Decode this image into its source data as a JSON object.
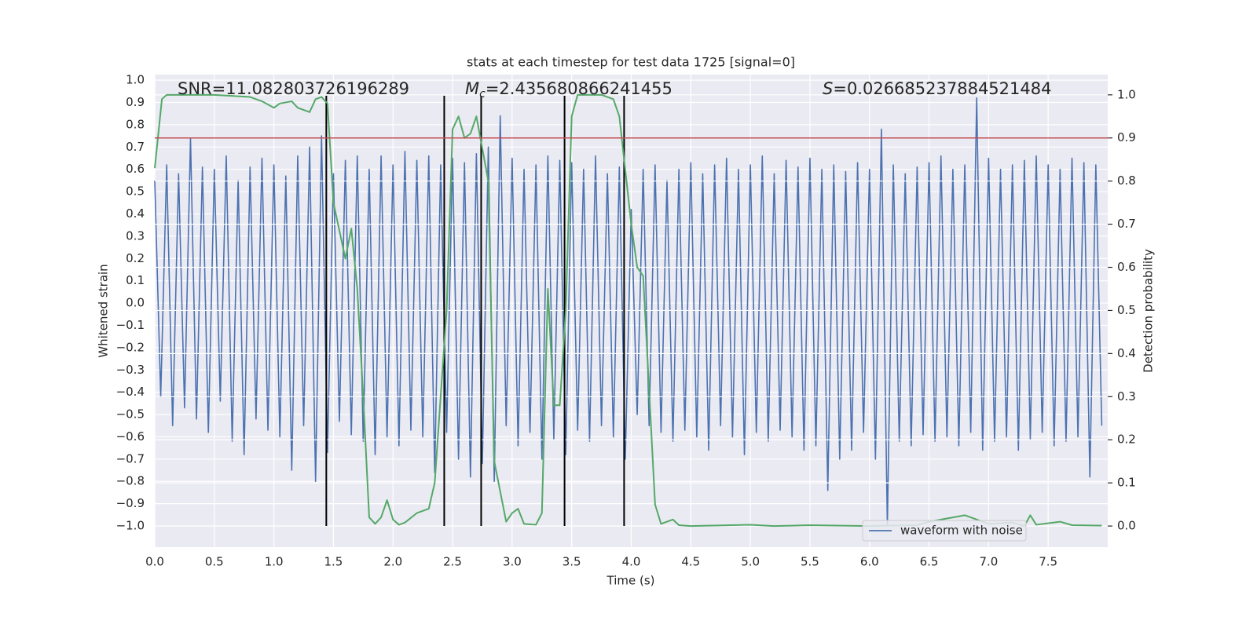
{
  "chart_data": {
    "type": "line",
    "title": "stats at each timestep for test data 1725 [signal=0]",
    "xlabel": "Time (s)",
    "ylabel": "Whitened strain",
    "y2label": "Detection probability",
    "background": "#eaeaf2",
    "grid": true,
    "legend": "lower right",
    "xlim": [
      0,
      8
    ],
    "xticks": [
      {
        "value": 0,
        "label": "0.0"
      },
      0.5,
      {
        "value": 1,
        "label": "1.0"
      },
      1.5,
      {
        "value": 2,
        "label": "2.0"
      },
      2.5,
      {
        "value": 3,
        "label": "3.0"
      },
      3.5,
      {
        "value": 4,
        "label": "4.0"
      },
      4.5,
      {
        "value": 5,
        "label": "5.0"
      },
      5.5,
      {
        "value": 6,
        "label": "6.0"
      },
      6.5,
      {
        "value": 7,
        "label": "7.0"
      },
      7.5
    ],
    "ylim": [
      -1.095,
      1.025
    ],
    "yticks": [
      {
        "value": -1,
        "label": "−1.0"
      },
      {
        "value": -0.9,
        "label": "−0.9"
      },
      {
        "value": -0.8,
        "label": "−0.8"
      },
      {
        "value": -0.7,
        "label": "−0.7"
      },
      {
        "value": -0.6,
        "label": "−0.6"
      },
      {
        "value": -0.5,
        "label": "−0.5"
      },
      {
        "value": -0.4,
        "label": "−0.4"
      },
      {
        "value": -0.3,
        "label": "−0.3"
      },
      {
        "value": -0.2,
        "label": "−0.2"
      },
      {
        "value": -0.1,
        "label": "−0.1"
      },
      {
        "value": 0,
        "label": "0.0"
      },
      0.1,
      0.2,
      0.3,
      0.4,
      0.5,
      0.6,
      0.7,
      0.8,
      0.9,
      {
        "value": 1,
        "label": "1.0"
      }
    ],
    "y2lim": [
      -0.049,
      1.047
    ],
    "y2ticks": [
      {
        "value": 0,
        "label": "0.0"
      },
      0.1,
      0.2,
      0.3,
      0.4,
      0.5,
      0.6,
      0.7,
      0.8,
      0.9,
      {
        "value": 1,
        "label": "1.0"
      }
    ],
    "x": [
      0,
      0.05,
      0.1,
      0.15,
      0.2,
      0.25,
      0.3,
      0.35,
      0.4,
      0.45,
      0.5,
      0.55,
      0.6,
      0.65,
      0.7,
      0.75,
      0.8,
      0.85,
      0.9,
      0.95,
      1.0,
      1.05,
      1.1,
      1.15,
      1.2,
      1.25,
      1.3,
      1.35,
      1.4,
      1.45,
      1.5,
      1.55,
      1.6,
      1.65,
      1.7,
      1.75,
      1.8,
      1.85,
      1.9,
      1.95,
      2.0,
      2.05,
      2.1,
      2.15,
      2.2,
      2.25,
      2.3,
      2.35,
      2.4,
      2.45,
      2.5,
      2.55,
      2.6,
      2.65,
      2.7,
      2.75,
      2.8,
      2.85,
      2.9,
      2.95,
      3.0,
      3.05,
      3.1,
      3.15,
      3.2,
      3.25,
      3.3,
      3.35,
      3.4,
      3.45,
      3.5,
      3.55,
      3.6,
      3.65,
      3.7,
      3.75,
      3.8,
      3.85,
      3.9,
      3.95,
      4.0,
      4.05,
      4.1,
      4.15,
      4.2,
      4.25,
      4.3,
      4.35,
      4.4,
      4.45,
      4.5,
      4.55,
      4.6,
      4.65,
      4.7,
      4.75,
      4.8,
      4.85,
      4.9,
      4.95,
      5.0,
      5.05,
      5.1,
      5.15,
      5.2,
      5.25,
      5.3,
      5.35,
      5.4,
      5.45,
      5.5,
      5.55,
      5.6,
      5.65,
      5.7,
      5.75,
      5.8,
      5.85,
      5.9,
      5.95,
      6.0,
      6.05,
      6.1,
      6.15,
      6.2,
      6.25,
      6.3,
      6.35,
      6.4,
      6.45,
      6.5,
      6.55,
      6.6,
      6.65,
      6.7,
      6.75,
      6.8,
      6.85,
      6.9,
      6.95,
      7.0,
      7.05,
      7.1,
      7.15,
      7.2,
      7.25,
      7.3,
      7.35,
      7.4,
      7.45,
      7.5,
      7.55,
      7.6,
      7.65,
      7.7,
      7.75,
      7.8,
      7.85,
      7.9,
      7.95
    ],
    "series": [
      {
        "name": "waveform with noise",
        "color": "#4c72b0",
        "values": [
          0.55,
          -0.42,
          0.62,
          -0.55,
          0.58,
          -0.47,
          0.74,
          -0.52,
          0.61,
          -0.58,
          0.6,
          -0.44,
          0.66,
          -0.62,
          0.55,
          -0.68,
          0.61,
          -0.52,
          0.65,
          -0.57,
          0.62,
          -0.6,
          0.57,
          -0.75,
          0.66,
          -0.55,
          0.7,
          -0.8,
          0.75,
          -0.67,
          0.58,
          -0.53,
          0.64,
          -0.59,
          0.66,
          -0.62,
          0.6,
          -0.68,
          0.66,
          -0.6,
          0.62,
          -0.64,
          0.68,
          -0.57,
          0.64,
          -0.6,
          0.66,
          -0.76,
          0.62,
          -0.58,
          0.65,
          -0.7,
          0.63,
          -0.78,
          0.67,
          -0.72,
          0.7,
          -0.8,
          0.84,
          -0.55,
          0.65,
          -0.64,
          0.6,
          -0.58,
          0.62,
          -0.7,
          0.66,
          -0.61,
          0.64,
          -0.68,
          0.63,
          -0.57,
          0.6,
          -0.62,
          0.66,
          -0.55,
          0.58,
          -0.6,
          0.61,
          -0.7,
          0.42,
          -0.5,
          0.6,
          -0.55,
          0.62,
          -0.58,
          0.55,
          -0.62,
          0.6,
          -0.57,
          0.63,
          -0.6,
          0.58,
          -0.66,
          0.62,
          -0.55,
          0.65,
          -0.6,
          0.6,
          -0.68,
          0.62,
          -0.58,
          0.66,
          -0.62,
          0.58,
          -0.57,
          0.64,
          -0.6,
          0.61,
          -0.66,
          0.65,
          -0.64,
          0.6,
          -0.84,
          0.62,
          -0.7,
          0.59,
          -0.66,
          0.63,
          -0.58,
          0.6,
          -0.7,
          0.78,
          -1.0,
          0.62,
          -0.62,
          0.58,
          -0.64,
          0.61,
          -0.59,
          0.63,
          -0.62,
          0.66,
          -0.6,
          0.6,
          -0.64,
          0.62,
          -0.58,
          0.92,
          -0.66,
          0.65,
          -0.62,
          0.6,
          -0.6,
          0.62,
          -0.66,
          0.64,
          -0.61,
          0.66,
          -0.58,
          0.62,
          -0.64,
          0.6,
          -0.62,
          0.65,
          -0.6,
          0.63,
          -0.78,
          0.62,
          -0.55
        ]
      },
      {
        "color": "#55a868",
        "axis": "y2",
        "x": [
          0,
          0.06,
          0.1,
          0.5,
          0.8,
          0.9,
          1.0,
          1.05,
          1.15,
          1.2,
          1.3,
          1.35,
          1.4,
          1.45,
          1.5,
          1.6,
          1.65,
          1.7,
          1.75,
          1.8,
          1.85,
          1.9,
          1.95,
          2.0,
          2.05,
          2.1,
          2.2,
          2.3,
          2.35,
          2.45,
          2.5,
          2.55,
          2.6,
          2.65,
          2.7,
          2.8,
          2.85,
          2.95,
          3.0,
          3.05,
          3.1,
          3.2,
          3.25,
          3.3,
          3.35,
          3.4,
          3.45,
          3.5,
          3.55,
          3.65,
          3.75,
          3.85,
          3.9,
          4.0,
          4.05,
          4.1,
          4.2,
          4.25,
          4.35,
          4.4,
          4.5,
          5.0,
          5.2,
          5.5,
          6.0,
          6.4,
          6.5,
          6.8,
          6.9,
          7.0,
          7.2,
          7.3,
          7.35,
          7.4,
          7.6,
          7.7,
          7.95
        ],
        "values": [
          0.83,
          0.99,
          1.0,
          1.0,
          0.995,
          0.985,
          0.97,
          0.98,
          0.985,
          0.97,
          0.96,
          0.99,
          0.995,
          0.98,
          0.75,
          0.62,
          0.69,
          0.55,
          0.3,
          0.02,
          0.005,
          0.02,
          0.06,
          0.015,
          0.003,
          0.008,
          0.03,
          0.04,
          0.1,
          0.5,
          0.92,
          0.95,
          0.9,
          0.91,
          0.95,
          0.8,
          0.15,
          0.01,
          0.03,
          0.04,
          0.005,
          0.003,
          0.03,
          0.55,
          0.28,
          0.28,
          0.5,
          0.95,
          1.0,
          1.0,
          1.0,
          0.99,
          0.95,
          0.7,
          0.6,
          0.58,
          0.05,
          0.005,
          0.015,
          0.002,
          0.0,
          0.003,
          0.0,
          0.002,
          0.0,
          0.002,
          0.01,
          0.025,
          0.015,
          0.005,
          0.008,
          0.0,
          0.025,
          0.003,
          0.01,
          0.002,
          0.001
        ]
      }
    ],
    "hlines": [
      {
        "y": 0.9,
        "axis": "y2",
        "color": "#c44e52"
      }
    ],
    "vlines": {
      "x": [
        1.44,
        2.43,
        2.74,
        3.44,
        3.94
      ],
      "ymin": -1.0,
      "ymax": 0.93,
      "color": "#000000"
    },
    "annotations": [
      {
        "text": "SNR=11.082803726196289"
      },
      {
        "symbol": "M",
        "subscript": "c",
        "text": "=2.435680866241455"
      },
      {
        "symbol": "S",
        "text": "=0.026685237884521484"
      }
    ]
  }
}
